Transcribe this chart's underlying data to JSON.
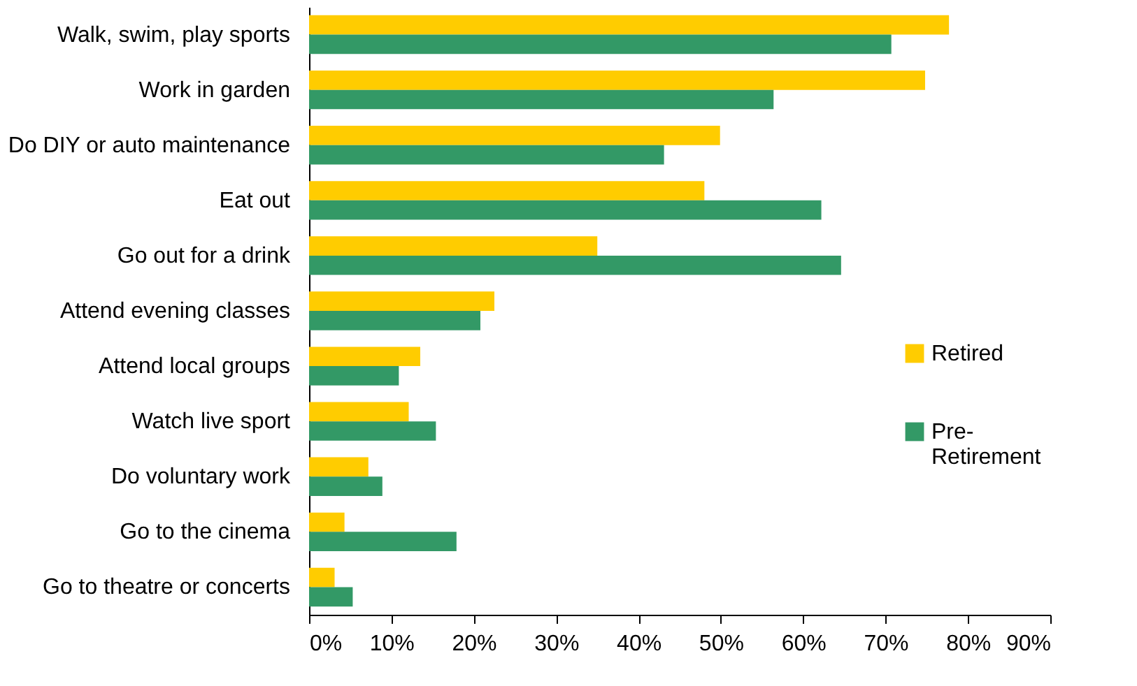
{
  "chart_data": {
    "type": "bar",
    "orientation": "horizontal",
    "categories": [
      "Walk, swim, play sports",
      "Work in garden",
      "Do DIY or auto maintenance",
      "Eat out",
      "Go out for a drink",
      "Attend evening classes",
      "Attend local groups",
      "Watch live sport",
      "Do voluntary work",
      "Go to the cinema",
      "Go to theatre or concerts"
    ],
    "series": [
      {
        "name": "Retired",
        "color": "#ffcc00",
        "values": [
          77.7,
          74.8,
          49.9,
          48.0,
          35.0,
          22.5,
          13.5,
          12.1,
          7.2,
          4.3,
          3.1
        ]
      },
      {
        "name": "Pre-Retirement",
        "color": "#339966",
        "values": [
          70.7,
          56.4,
          43.1,
          62.2,
          64.6,
          20.8,
          10.9,
          15.4,
          8.9,
          17.9,
          5.3
        ]
      }
    ],
    "xlim": [
      0,
      90
    ],
    "xticks": [
      {
        "value": 0,
        "label": "0%"
      },
      {
        "value": 10,
        "label": "10%"
      },
      {
        "value": 20,
        "label": "20%"
      },
      {
        "value": 30,
        "label": "30%"
      },
      {
        "value": 40,
        "label": "40%"
      },
      {
        "value": 50,
        "label": "50%"
      },
      {
        "value": 60,
        "label": "60%"
      },
      {
        "value": 70,
        "label": "70%"
      },
      {
        "value": 80,
        "label": "80%"
      },
      {
        "value": 90,
        "label": "90%"
      }
    ],
    "legend": "right",
    "grid": false
  }
}
